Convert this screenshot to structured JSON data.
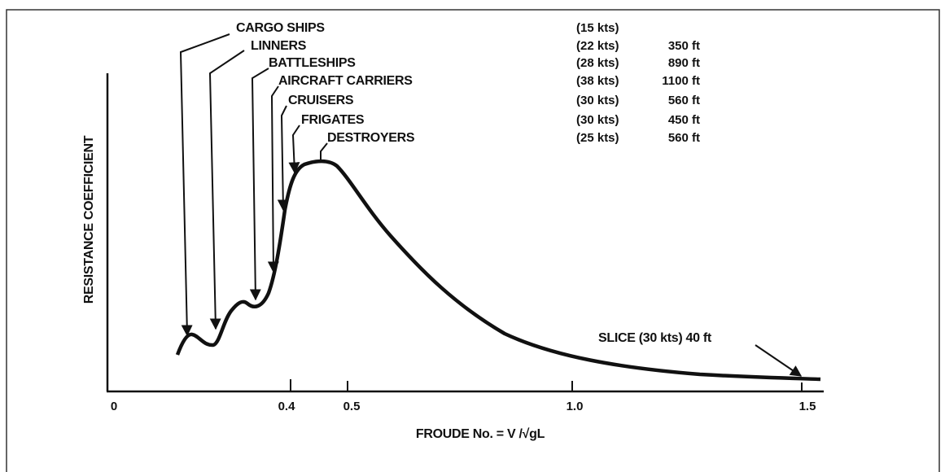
{
  "y_axis_label": "RESISTANCE COEFFICIENT",
  "x_axis_label": "FROUDE No. = V /√gL",
  "x_tick_labels": [
    "0",
    "0.4",
    "0.5",
    "1.0",
    "1.5"
  ],
  "annotations": [
    {
      "name": "CARGO SHIPS",
      "speed": "(15 kts)"
    },
    {
      "name": "LINNERS",
      "speed": "(22 kts)",
      "length": "350 ft"
    },
    {
      "name": "BATTLESHIPS",
      "speed": "(28 kts)",
      "length": "890 ft"
    },
    {
      "name": "AIRCRAFT CARRIERS",
      "speed": "(38 kts)",
      "length": "1100 ft"
    },
    {
      "name": "CRUISERS",
      "speed": "(30 kts)",
      "length": "560 ft"
    },
    {
      "name": "FRIGATES",
      "speed": "(30 kts)",
      "length": "450 ft"
    },
    {
      "name": "DESTROYERS",
      "speed": "(25 kts)",
      "length": "560 ft"
    }
  ],
  "slice_label": "SLICE (30 kts) 40 ft"
}
